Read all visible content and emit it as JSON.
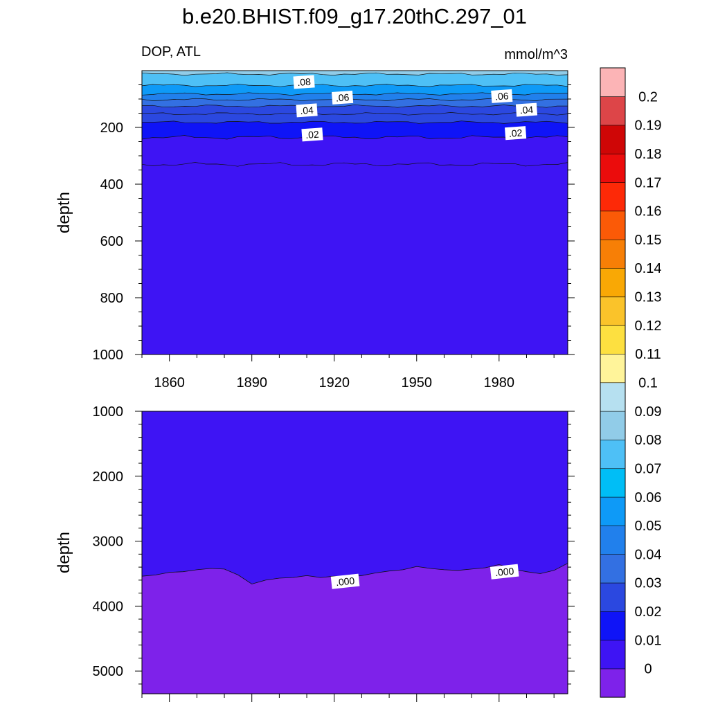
{
  "title": "b.e20.BHIST.f09_g17.20thC.297_01",
  "variable_label": "DOP, ATL",
  "units_label": "mmol/m^3",
  "colorbar": {
    "labels": [
      "0",
      "0.01",
      "0.02",
      "0.03",
      "0.04",
      "0.05",
      "0.06",
      "0.07",
      "0.08",
      "0.09",
      "0.1",
      "0.11",
      "0.12",
      "0.13",
      "0.14",
      "0.15",
      "0.16",
      "0.17",
      "0.18",
      "0.19",
      "0.2"
    ],
    "colors": [
      "#7e22ea",
      "#3e14f4",
      "#0f14f7",
      "#2b48e0",
      "#3370e2",
      "#2180ec",
      "#0e9af7",
      "#00bef6",
      "#4ec0f6",
      "#91cce8",
      "#b6e0f0",
      "#fff49a",
      "#fde040",
      "#fac32a",
      "#f9a805",
      "#f77f06",
      "#fb5a07",
      "#fd2907",
      "#eb0c0c",
      "#cf0606",
      "#dd4548",
      "#fcb4b6"
    ]
  },
  "chart_data": [
    {
      "type": "contour",
      "panel": "upper",
      "xlabel": "",
      "ylabel": "depth",
      "xlim": [
        1850,
        2005
      ],
      "ylim": [
        1000,
        0
      ],
      "x_ticks": [
        1860,
        1890,
        1920,
        1950,
        1980
      ],
      "x_tick_labels": [
        "1860",
        "1890",
        "1920",
        "1950",
        "1980"
      ],
      "y_ticks": [
        200,
        400,
        600,
        800,
        1000
      ],
      "y_tick_labels": [
        "200",
        "400",
        "600",
        "800",
        "1000"
      ],
      "contour_labels": [
        {
          "text": ".08",
          "year": 1909,
          "depth": 40
        },
        {
          "text": ".06",
          "year": 1923,
          "depth": 95
        },
        {
          "text": ".06",
          "year": 1981,
          "depth": 90
        },
        {
          "text": ".04",
          "year": 1910,
          "depth": 140
        },
        {
          "text": ".04",
          "year": 1990,
          "depth": 138
        },
        {
          "text": ".02",
          "year": 1912,
          "depth": 225
        },
        {
          "text": ".02",
          "year": 1986,
          "depth": 220
        }
      ],
      "contour_levels": [
        {
          "level": 0.09,
          "color": "#b6e0f0",
          "depth": 0
        },
        {
          "level": 0.08,
          "color": "#91cce8",
          "depth": 12
        },
        {
          "level": 0.07,
          "color": "#4ec0f6",
          "depth": 52
        },
        {
          "level": 0.06,
          "color": "#0e9af7",
          "depth": 82
        },
        {
          "level": 0.05,
          "color": "#2180ec",
          "depth": 102
        },
        {
          "level": 0.04,
          "color": "#3370e2",
          "depth": 125
        },
        {
          "level": 0.03,
          "color": "#2b48e0",
          "depth": 152
        },
        {
          "level": 0.02,
          "color": "#2b48e0",
          "depth": 182
        },
        {
          "level": 0.01,
          "color": "#0f14f7",
          "depth": 235
        },
        {
          "level": 0.0,
          "color": "#3e14f4",
          "depth": 330
        }
      ]
    },
    {
      "type": "contour",
      "panel": "lower",
      "xlabel": "",
      "ylabel": "depth",
      "xlim": [
        1850,
        2005
      ],
      "ylim": [
        5350,
        1000
      ],
      "y_ticks": [
        1000,
        2000,
        3000,
        4000,
        5000
      ],
      "y_tick_labels": [
        "1000",
        "2000",
        "3000",
        "4000",
        "5000"
      ],
      "contour_labels": [
        {
          "text": ".000",
          "year": 1924,
          "depth": 3620
        },
        {
          "text": ".000",
          "year": 1982,
          "depth": 3470
        }
      ],
      "zero_contour": {
        "years": [
          1850,
          1855,
          1860,
          1865,
          1870,
          1875,
          1880,
          1885,
          1890,
          1895,
          1900,
          1905,
          1910,
          1915,
          1920,
          1925,
          1930,
          1935,
          1940,
          1945,
          1950,
          1955,
          1960,
          1965,
          1970,
          1975,
          1980,
          1985,
          1990,
          1995,
          2000,
          2005
        ],
        "depths": [
          3540,
          3520,
          3480,
          3470,
          3440,
          3420,
          3430,
          3520,
          3660,
          3600,
          3570,
          3560,
          3530,
          3560,
          3540,
          3550,
          3530,
          3490,
          3460,
          3440,
          3390,
          3420,
          3440,
          3450,
          3430,
          3410,
          3360,
          3430,
          3470,
          3500,
          3450,
          3340
        ]
      },
      "fill_above": "#3e14f4",
      "fill_below": "#7e22ea"
    }
  ]
}
